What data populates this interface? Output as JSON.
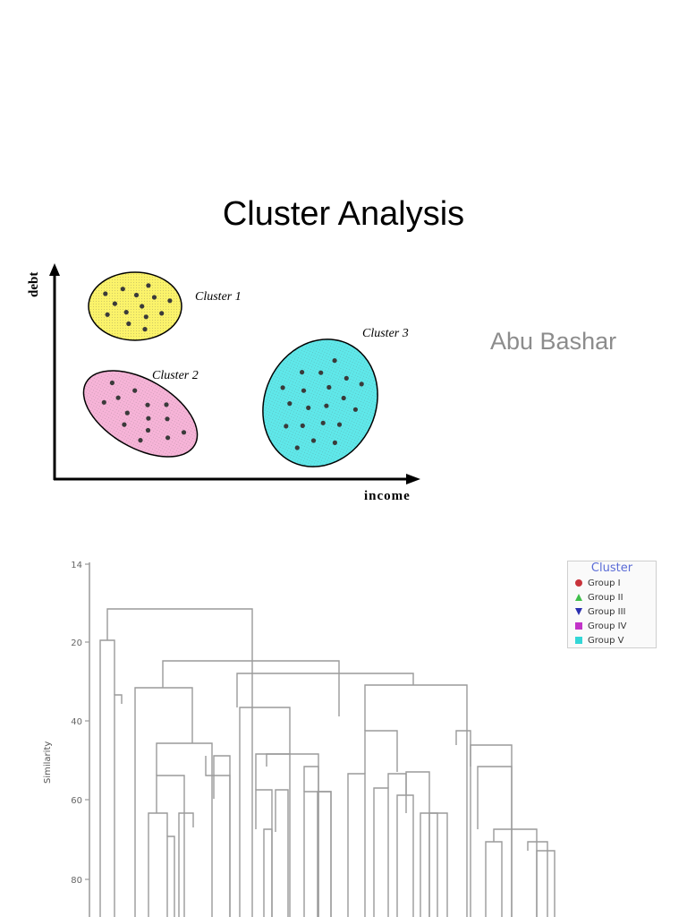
{
  "slide": {
    "title": "Cluster Analysis",
    "author": "Abu Bashar"
  },
  "chart_data": [
    {
      "type": "scatter",
      "xlabel": "income",
      "ylabel": "debt",
      "clusters": [
        {
          "label": "Cluster 1",
          "color": "#fbf36a",
          "points": 14
        },
        {
          "label": "Cluster 2",
          "color": "#f7b4d8",
          "points": 14
        },
        {
          "label": "Cluster 3",
          "color": "#5fe8ea",
          "points": 20
        }
      ]
    },
    {
      "type": "dendrogram",
      "ylabel": "Similarity",
      "y_ticks": [
        "14",
        "20",
        "40",
        "60",
        "80"
      ],
      "legend_title": "Cluster",
      "legend": [
        {
          "name": "Group I",
          "color": "#c8333b",
          "marker": "circle"
        },
        {
          "name": "Group II",
          "color": "#3fbf4a",
          "marker": "triangle-up"
        },
        {
          "name": "Group III",
          "color": "#2a2fb0",
          "marker": "triangle-down"
        },
        {
          "name": "Group IV",
          "color": "#c233c8",
          "marker": "square"
        },
        {
          "name": "Group V",
          "color": "#33d6d6",
          "marker": "square"
        }
      ]
    }
  ]
}
